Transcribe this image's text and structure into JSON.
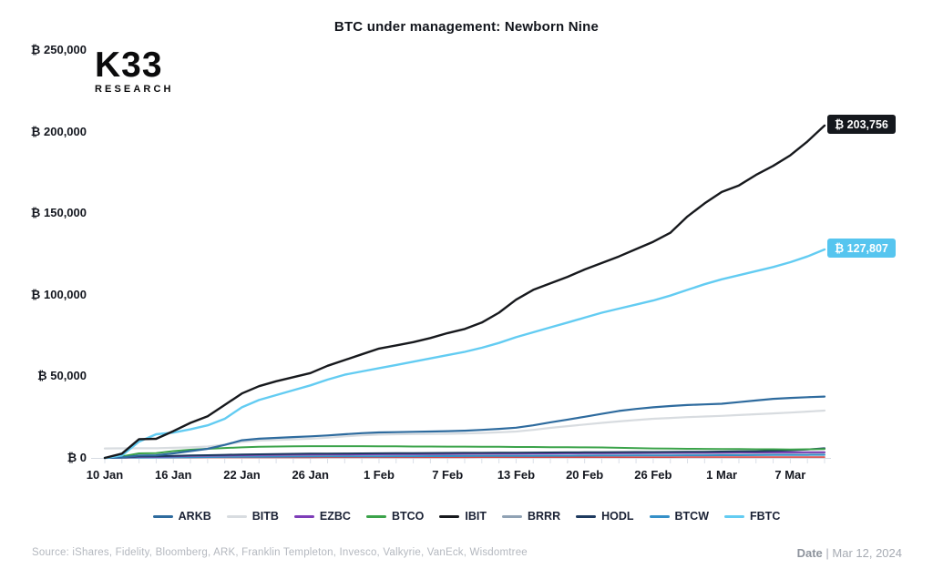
{
  "title": "BTC under management: Newborn Nine",
  "logo": {
    "line1": "K33",
    "line2": "RESEARCH"
  },
  "footer": {
    "source": "Source:  iShares, Fidelity, Bloomberg, ARK, Franklin Templeton, Invesco, Valkyrie, VanEck, Wisdomtree",
    "date_label": "Date",
    "date_value": " | Mar 12, 2024"
  },
  "chart_data": {
    "type": "line",
    "title": "BTC under management: Newborn Nine",
    "unit_prefix": "₿",
    "ylim": [
      0,
      250000
    ],
    "grid": false,
    "legend_position": "bottom",
    "yticks": [
      {
        "v": 0,
        "label": "₿ 0"
      },
      {
        "v": 50000,
        "label": "₿ 50,000"
      },
      {
        "v": 100000,
        "label": "₿ 100,000"
      },
      {
        "v": 150000,
        "label": "₿ 150,000"
      },
      {
        "v": 200000,
        "label": "₿ 200,000"
      },
      {
        "v": 250000,
        "label": "₿ 250,000"
      }
    ],
    "x_count": 43,
    "x_note": "trading days 10 Jan 2024 – 12 Mar 2024",
    "xticks": [
      {
        "i": 0,
        "label": "10 Jan"
      },
      {
        "i": 4,
        "label": "16 Jan"
      },
      {
        "i": 8,
        "label": "22 Jan"
      },
      {
        "i": 12,
        "label": "26 Jan"
      },
      {
        "i": 16,
        "label": "1 Feb"
      },
      {
        "i": 20,
        "label": "7 Feb"
      },
      {
        "i": 24,
        "label": "13 Feb"
      },
      {
        "i": 28,
        "label": "20 Feb"
      },
      {
        "i": 32,
        "label": "26 Feb"
      },
      {
        "i": 36,
        "label": "1 Mar"
      },
      {
        "i": 40,
        "label": "7 Mar"
      }
    ],
    "legend": [
      "ARKB",
      "BITB",
      "EZBC",
      "BTCO",
      "IBIT",
      "BRRR",
      "HODL",
      "BTCW",
      "FBTC"
    ],
    "series": [
      {
        "name": "",
        "color": "#d64545",
        "width": 1.6,
        "values": [
          0,
          50,
          150,
          160,
          200,
          250,
          280,
          300,
          320,
          330,
          340,
          350,
          360,
          370,
          380,
          380,
          390,
          390,
          400,
          400,
          410,
          410,
          420,
          420,
          430,
          430,
          440,
          440,
          450,
          450,
          460,
          460,
          470,
          470,
          480,
          480,
          490,
          490,
          500,
          500,
          510,
          510,
          520
        ]
      },
      {
        "name": "BTCW",
        "color": "#3590c8",
        "width": 2,
        "values": [
          0,
          100,
          250,
          270,
          350,
          450,
          550,
          620,
          700,
          750,
          800,
          850,
          900,
          950,
          980,
          1000,
          1020,
          1050,
          1080,
          1100,
          1130,
          1160,
          1200,
          1230,
          1260,
          1300,
          1330,
          1360,
          1400,
          1430,
          1460,
          1500,
          1530,
          1560,
          1600,
          1630,
          1660,
          1700,
          1730,
          1760,
          1800,
          1850,
          1900
        ]
      },
      {
        "name": "BRRR",
        "color": "#90a2b4",
        "width": 2,
        "values": [
          0,
          250,
          600,
          650,
          900,
          1100,
          1250,
          1400,
          1500,
          1600,
          1700,
          1750,
          1800,
          1900,
          1950,
          2000,
          2050,
          2100,
          2150,
          2200,
          2250,
          2300,
          2350,
          2400,
          2450,
          2500,
          2550,
          2600,
          2650,
          2700,
          2750,
          2800,
          2850,
          2900,
          2900,
          2950,
          2950,
          3000,
          3000,
          3050,
          3050,
          3100,
          3150
        ]
      },
      {
        "name": "EZBC",
        "color": "#7e3db8",
        "width": 2,
        "values": [
          0,
          200,
          700,
          750,
          1000,
          1200,
          1400,
          1550,
          1700,
          1800,
          1900,
          2000,
          2100,
          2150,
          2200,
          2250,
          2300,
          2350,
          2400,
          2450,
          2500,
          2550,
          2600,
          2650,
          2700,
          2750,
          2800,
          2850,
          2900,
          2950,
          3000,
          3050,
          3100,
          3150,
          3200,
          3250,
          3300,
          3350,
          3350,
          3400,
          3400,
          3450,
          3500
        ]
      },
      {
        "name": "HODL",
        "color": "#1e3a5f",
        "width": 2,
        "values": [
          0,
          300,
          900,
          950,
          1200,
          1500,
          1700,
          1900,
          2100,
          2250,
          2400,
          2500,
          2600,
          2700,
          2750,
          2800,
          2850,
          2900,
          2950,
          3000,
          3050,
          3100,
          3150,
          3200,
          3250,
          3300,
          3350,
          3400,
          3450,
          3500,
          3550,
          3600,
          3650,
          3700,
          3750,
          3800,
          3900,
          4000,
          4100,
          4300,
          4600,
          5200,
          5900
        ]
      },
      {
        "name": "BTCO",
        "color": "#3ba34a",
        "width": 2,
        "values": [
          0,
          900,
          2800,
          2900,
          4200,
          5000,
          5600,
          6100,
          6500,
          6800,
          7000,
          7100,
          7200,
          7200,
          7200,
          7200,
          7100,
          7100,
          7000,
          7000,
          6900,
          6900,
          6800,
          6800,
          6700,
          6700,
          6600,
          6600,
          6500,
          6400,
          6200,
          6000,
          5800,
          5700,
          5600,
          5500,
          5400,
          5400,
          5300,
          5300,
          5200,
          5300,
          5400
        ]
      },
      {
        "name": "BITB",
        "color": "#d8dce0",
        "width": 2.2,
        "values": [
          5800,
          5850,
          5900,
          5900,
          6200,
          6500,
          7000,
          8200,
          9800,
          10600,
          11000,
          11400,
          11800,
          12400,
          13200,
          13900,
          14300,
          14500,
          14600,
          14700,
          14800,
          15000,
          15300,
          15700,
          16200,
          17200,
          18400,
          19500,
          20500,
          21500,
          22400,
          23200,
          24000,
          24500,
          25000,
          25400,
          25800,
          26300,
          26800,
          27300,
          27800,
          28400,
          29000
        ]
      },
      {
        "name": "ARKB",
        "color": "#2e6b9e",
        "width": 2.2,
        "values": [
          0,
          300,
          1500,
          1600,
          2800,
          4200,
          5600,
          8000,
          10800,
          11800,
          12300,
          12800,
          13200,
          13800,
          14500,
          15200,
          15600,
          15800,
          16000,
          16200,
          16400,
          16700,
          17200,
          17800,
          18500,
          20000,
          21800,
          23500,
          25200,
          27000,
          28800,
          30000,
          31000,
          31800,
          32400,
          32800,
          33200,
          34200,
          35200,
          36200,
          36800,
          37200,
          37600
        ]
      },
      {
        "name": "FBTC",
        "color": "#63ccf2",
        "width": 2.4,
        "values": [
          0,
          1500,
          10000,
          14500,
          15500,
          17500,
          20000,
          24000,
          31000,
          35500,
          38500,
          41500,
          44500,
          48000,
          51000,
          53000,
          55000,
          57000,
          59000,
          61000,
          63000,
          65000,
          67500,
          70500,
          74000,
          77000,
          80000,
          83000,
          86000,
          89000,
          91500,
          94000,
          96500,
          99500,
          103000,
          106500,
          109500,
          112000,
          114500,
          117000,
          120000,
          123500,
          127807
        ]
      },
      {
        "name": "IBIT",
        "color": "#17191d",
        "width": 2.4,
        "values": [
          0,
          2600,
          11500,
          11700,
          16400,
          21500,
          25500,
          32500,
          39500,
          44000,
          47000,
          49500,
          52000,
          56500,
          60000,
          63500,
          67000,
          69000,
          71000,
          73500,
          76500,
          79000,
          83000,
          89000,
          97000,
          103000,
          107000,
          111000,
          115500,
          119500,
          123500,
          128000,
          132500,
          138000,
          148000,
          156000,
          163000,
          167000,
          173500,
          179000,
          185500,
          194000,
          203756
        ]
      }
    ],
    "annotations": [
      {
        "series": "IBIT",
        "text": "₿ 203,756",
        "bg": "#15181d",
        "text_color": "#ffffff"
      },
      {
        "series": "FBTC",
        "text": "₿ 127,807",
        "bg": "#56c5ef",
        "text_color": "#ffffff"
      }
    ]
  }
}
